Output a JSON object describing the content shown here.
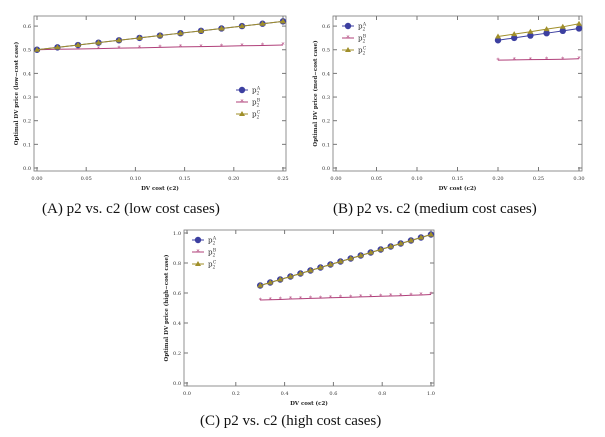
{
  "chart_data": [
    {
      "type": "line",
      "caption": "(A) p2 vs. c2 (low cost cases)",
      "xlabel": "DV cost (c2)",
      "ylabel": "Optimal DV price (low−cost case)",
      "xlim": [
        0,
        0.25
      ],
      "ylim": [
        0,
        0.63
      ],
      "xticks": [
        "0.00",
        "0.05",
        "0.10",
        "0.15",
        "0.20",
        "0.25"
      ],
      "yticks": [
        "0.0",
        "0.1",
        "0.2",
        "0.3",
        "0.4",
        "0.5",
        "0.6"
      ],
      "legend_position": "right",
      "x": [
        0,
        0.0208,
        0.0417,
        0.0625,
        0.0833,
        0.1042,
        0.125,
        0.1458,
        0.1667,
        0.1875,
        0.2083,
        0.2292,
        0.25
      ],
      "series": [
        {
          "name": "p2^A",
          "values": [
            0.5,
            0.51,
            0.52,
            0.53,
            0.54,
            0.55,
            0.56,
            0.57,
            0.58,
            0.59,
            0.6,
            0.61,
            0.62
          ]
        },
        {
          "name": "p2^B",
          "values": [
            0.5,
            0.502,
            0.503,
            0.505,
            0.507,
            0.508,
            0.51,
            0.512,
            0.513,
            0.515,
            0.517,
            0.518,
            0.52
          ]
        },
        {
          "name": "p2^C",
          "values": [
            0.5,
            0.51,
            0.52,
            0.53,
            0.54,
            0.55,
            0.56,
            0.57,
            0.58,
            0.59,
            0.6,
            0.61,
            0.62
          ]
        }
      ]
    },
    {
      "type": "line",
      "caption": "(B) p2 vs. c2 (medium cost cases)",
      "xlabel": "DV cost (c2)",
      "ylabel": "Optimal DV price (med−cost case)",
      "xlim": [
        0,
        0.3
      ],
      "ylim": [
        0,
        0.63
      ],
      "xticks": [
        "0.00",
        "0.05",
        "0.10",
        "0.15",
        "0.20",
        "0.25",
        "0.30"
      ],
      "yticks": [
        "0.0",
        "0.1",
        "0.2",
        "0.3",
        "0.4",
        "0.5",
        "0.6"
      ],
      "legend_position": "top-left",
      "x": [
        0.2,
        0.22,
        0.24,
        0.26,
        0.28,
        0.3
      ],
      "series": [
        {
          "name": "p2^A",
          "values": [
            0.54,
            0.55,
            0.56,
            0.57,
            0.58,
            0.59
          ]
        },
        {
          "name": "p2^B",
          "values": [
            0.456,
            0.457,
            0.458,
            0.459,
            0.46,
            0.462
          ]
        },
        {
          "name": "p2^C",
          "values": [
            0.556,
            0.566,
            0.576,
            0.587,
            0.597,
            0.61
          ]
        }
      ]
    },
    {
      "type": "line",
      "caption": "(C) p2 vs. c2 (high cost cases)",
      "xlabel": "DV cost (c2)",
      "ylabel": "Optimal DV price (high−cost case)",
      "xlim": [
        0,
        1.0
      ],
      "ylim": [
        0,
        1.0
      ],
      "xticks": [
        "0.0",
        "0.2",
        "0.4",
        "0.6",
        "0.8",
        "1.0"
      ],
      "yticks": [
        "0.0",
        "0.2",
        "0.4",
        "0.6",
        "0.8",
        "1.0"
      ],
      "legend_position": "top-left",
      "x": [
        0.3,
        0.341,
        0.382,
        0.424,
        0.465,
        0.506,
        0.547,
        0.588,
        0.629,
        0.671,
        0.712,
        0.753,
        0.794,
        0.835,
        0.876,
        0.918,
        0.959,
        1.0
      ],
      "series": [
        {
          "name": "p2^A",
          "values": [
            0.65,
            0.67,
            0.69,
            0.71,
            0.73,
            0.75,
            0.77,
            0.79,
            0.81,
            0.83,
            0.85,
            0.87,
            0.89,
            0.91,
            0.93,
            0.95,
            0.97,
            0.99
          ]
        },
        {
          "name": "p2^B",
          "values": [
            0.553,
            0.555,
            0.557,
            0.56,
            0.562,
            0.564,
            0.566,
            0.568,
            0.57,
            0.572,
            0.574,
            0.576,
            0.578,
            0.58,
            0.582,
            0.585,
            0.587,
            0.59
          ]
        },
        {
          "name": "p2^C",
          "values": [
            0.65,
            0.67,
            0.69,
            0.71,
            0.73,
            0.75,
            0.77,
            0.79,
            0.81,
            0.83,
            0.85,
            0.87,
            0.89,
            0.91,
            0.93,
            0.95,
            0.97,
            0.99
          ]
        }
      ]
    }
  ],
  "colors": {
    "A": "#3c3fa0",
    "B": "#b0407a",
    "C": "#a08f2a"
  }
}
